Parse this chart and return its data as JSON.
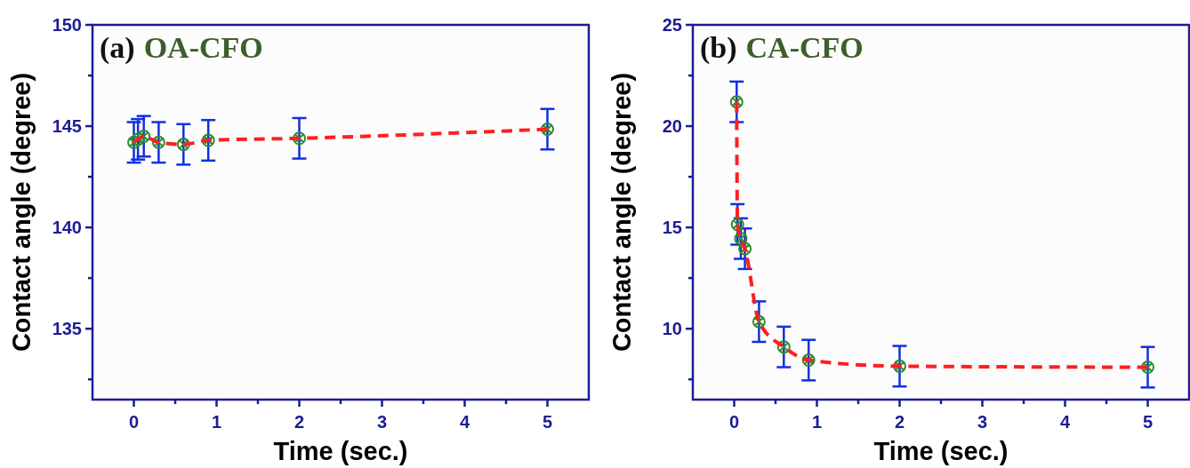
{
  "chart_data": [
    {
      "type": "scatter",
      "annotations": [
        "(a)",
        "OA-CFO"
      ],
      "xlabel": "Time (sec.)",
      "ylabel": "Contact angle (degree)",
      "xlim": [
        -0.5,
        5.5
      ],
      "xticks": [
        0,
        {
          "value": 0.5,
          "label": null
        },
        1,
        {
          "value": 1.5,
          "label": null
        },
        2,
        {
          "value": 2.5,
          "label": null
        },
        3,
        {
          "value": 3.5,
          "label": null
        },
        4,
        {
          "value": 4.5,
          "label": null
        },
        5
      ],
      "ylim": [
        131.5,
        150
      ],
      "yticks": [
        {
          "value": 132.5,
          "label": null
        },
        135,
        {
          "value": 137.5,
          "label": null
        },
        140,
        {
          "value": 142.5,
          "label": null
        },
        145,
        {
          "value": 147.5,
          "label": null
        },
        150
      ],
      "x": [
        0,
        0.05,
        0.12,
        0.3,
        0.6,
        0.9,
        2,
        5
      ],
      "series": [
        {
          "type": "line",
          "color": "#ff1f1f",
          "line_style": "dashed",
          "values": [
            144.2,
            144.35,
            144.5,
            144.2,
            144.1,
            144.3,
            144.4,
            144.85
          ]
        },
        {
          "color": "#2e8b2e",
          "marker": "cross",
          "values": [
            144.2,
            144.35,
            144.5,
            144.2,
            144.1,
            144.3,
            144.4,
            144.85
          ],
          "errors": [
            1,
            1,
            1,
            1,
            1,
            1,
            1,
            1
          ]
        }
      ],
      "grid": false
    },
    {
      "type": "scatter",
      "annotations": [
        "(b)",
        "CA-CFO"
      ],
      "xlabel": "Time (sec.)",
      "ylabel": "Contact angle (degree)",
      "xlim": [
        -0.5,
        5.5
      ],
      "xticks": [
        0,
        {
          "value": 0.5,
          "label": null
        },
        1,
        {
          "value": 1.5,
          "label": null
        },
        2,
        {
          "value": 2.5,
          "label": null
        },
        3,
        {
          "value": 3.5,
          "label": null
        },
        4,
        {
          "value": 4.5,
          "label": null
        },
        5
      ],
      "ylim": [
        6.5,
        25
      ],
      "yticks": [
        {
          "value": 7.5,
          "label": null
        },
        10,
        {
          "value": 12.5,
          "label": null
        },
        15,
        {
          "value": 17.5,
          "label": null
        },
        20,
        {
          "value": 22.5,
          "label": null
        },
        25
      ],
      "x": [
        0.03,
        0.04,
        0.08,
        0.13,
        0.3,
        0.6,
        0.9,
        2,
        5
      ],
      "series": [
        {
          "type": "line",
          "color": "#ff1f1f",
          "line_style": "dashed",
          "values": [
            21.2,
            15.15,
            14.45,
            13.95,
            10.35,
            9.1,
            8.45,
            8.15,
            8.1
          ]
        },
        {
          "color": "#2e8b2e",
          "marker": "cross",
          "values": [
            21.2,
            15.15,
            14.45,
            13.95,
            10.35,
            9.1,
            8.45,
            8.15,
            8.1
          ],
          "errors": [
            1,
            1,
            1,
            1,
            1,
            1,
            1,
            1,
            1
          ]
        }
      ],
      "grid": false
    }
  ]
}
